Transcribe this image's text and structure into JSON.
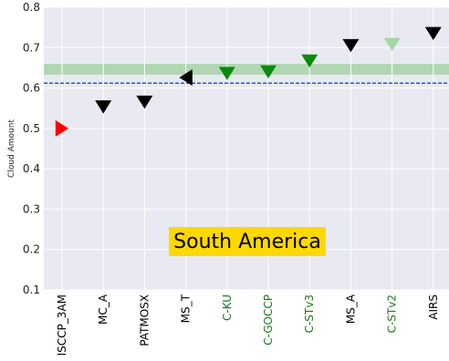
{
  "chart_data": {
    "type": "scatter",
    "ylabel": "Cloud Amount",
    "ylim": [
      0.1,
      0.8
    ],
    "yticks": [
      "0.1",
      "0.2",
      "0.3",
      "0.4",
      "0.5",
      "0.6",
      "0.7",
      "0.8"
    ],
    "grid": true,
    "annotation": "South America",
    "reference_line": {
      "value": 0.612,
      "style": "dashed",
      "color": "#1f5fbf"
    },
    "reference_band": {
      "low": 0.633,
      "high": 0.66,
      "color": "#9fcf9f"
    },
    "categories": [
      "ISCCP_3AM",
      "MC_A",
      "PATMOSX",
      "MS_T",
      "C-KU",
      "C-GOCCP",
      "C-STv3",
      "MS_A",
      "C-STv2",
      "AIRS"
    ],
    "label_colors": [
      "#000000",
      "#000000",
      "#000000",
      "#000000",
      "#1a7a1a",
      "#1a7a1a",
      "#1a7a1a",
      "#000000",
      "#1a7a1a",
      "#000000"
    ],
    "points": [
      {
        "category": "ISCCP_3AM",
        "value": 0.5,
        "marker": "triangle-right",
        "color": "#ff0000"
      },
      {
        "category": "MC_A",
        "value": 0.553,
        "marker": "triangle-down",
        "color": "#000000"
      },
      {
        "category": "PATMOSX",
        "value": 0.565,
        "marker": "triangle-down",
        "color": "#000000"
      },
      {
        "category": "MS_T",
        "value": 0.626,
        "marker": "triangle-left",
        "color": "#000000"
      },
      {
        "category": "C-KU",
        "value": 0.636,
        "marker": "triangle-down",
        "color": "#0b8a0b"
      },
      {
        "category": "C-GOCCP",
        "value": 0.64,
        "marker": "triangle-down",
        "color": "#0b8a0b"
      },
      {
        "category": "C-STv3",
        "value": 0.667,
        "marker": "triangle-down",
        "color": "#0b8a0b"
      },
      {
        "category": "MS_A",
        "value": 0.705,
        "marker": "triangle-down",
        "color": "#000000"
      },
      {
        "category": "C-STv2",
        "value": 0.708,
        "marker": "triangle-down",
        "color": "#a8d5a8"
      },
      {
        "category": "AIRS",
        "value": 0.735,
        "marker": "triangle-down",
        "color": "#000000"
      }
    ]
  }
}
